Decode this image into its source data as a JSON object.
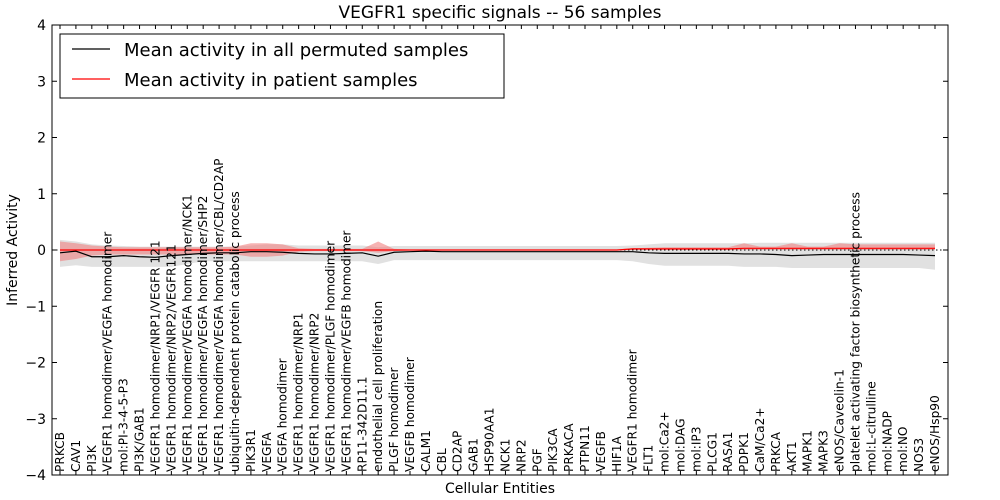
{
  "chart_data": {
    "type": "line",
    "title": "VEGFR1 specific signals -- 56 samples",
    "xlabel": "Cellular Entities",
    "ylabel": "Inferred Activity",
    "ylim": [
      -4,
      4
    ],
    "yticks": [
      -4,
      -3,
      -2,
      -1,
      0,
      1,
      2,
      3,
      4
    ],
    "ytick_labels": [
      "−4",
      "−3",
      "−2",
      "−1",
      "0",
      "1",
      "2",
      "3",
      "4"
    ],
    "legend_position": "top-left",
    "categories": [
      "PRKCB",
      "CAV1",
      "PI3K",
      "VEGFR1 homodimer/VEGFA homodimer",
      "mol:PI-3-4-5-P3",
      "PI3K/GAB1",
      "VEGFR1 homodimer/NRP1/VEGFR 121",
      "VEGFR1 homodimer/NRP2/VEGFR121",
      "VEGFR1 homodimer/VEGFA homodimer/NCK1",
      "VEGFR1 homodimer/VEGFA homodimer/SHP2",
      "VEGFR1 homodimer/VEGFA homodimer/CBL/CD2AP",
      "ubiquitin-dependent protein catabolic process",
      "PIK3R1",
      "VEGFA",
      "VEGFA homodimer",
      "VEGFR1 homodimer/NRP1",
      "VEGFR1 homodimer/NRP2",
      "VEGFR1 homodimer/PLGF homodimer",
      "VEGFR1 homodimer/VEGFB homodimer",
      "RP11-342D11.1",
      "endothelial cell proliferation",
      "PLGF homodimer",
      "VEGFB homodimer",
      "CALM1",
      "CBL",
      "CD2AP",
      "GAB1",
      "HSP90AA1",
      "NCK1",
      "NRP2",
      "PGF",
      "PIK3CA",
      "PRKACA",
      "PTPN11",
      "VEGFB",
      "HIF1A",
      "VEGFR1 homodimer",
      "FLT1",
      "mol:Ca2+",
      "mol:DAG",
      "mol:IP3",
      "PLCG1",
      "RASA1",
      "PDPK1",
      "CaM/Ca2+",
      "PRKCA",
      "AKT1",
      "MAPK1",
      "MAPK3",
      "eNOS/Caveolin-1",
      "platelet activating factor biosynthetic process",
      "mol:L-citrulline",
      "mol:NADP",
      "mol:NO",
      "NOS3",
      "eNOS/Hsp90"
    ],
    "series": [
      {
        "name": "Mean activity in all permuted samples",
        "color": "#000000",
        "band_color": "#bdbdbd",
        "values": [
          -0.05,
          -0.02,
          -0.12,
          -0.12,
          -0.1,
          -0.12,
          -0.13,
          -0.1,
          -0.08,
          -0.06,
          -0.05,
          -0.05,
          -0.03,
          -0.03,
          -0.04,
          -0.06,
          -0.07,
          -0.07,
          -0.06,
          -0.05,
          -0.11,
          -0.04,
          -0.03,
          -0.02,
          -0.03,
          -0.03,
          -0.03,
          -0.03,
          -0.03,
          -0.03,
          -0.03,
          -0.03,
          -0.03,
          -0.03,
          -0.03,
          -0.03,
          -0.03,
          -0.05,
          -0.06,
          -0.06,
          -0.06,
          -0.06,
          -0.06,
          -0.07,
          -0.07,
          -0.08,
          -0.1,
          -0.09,
          -0.08,
          -0.08,
          -0.08,
          -0.08,
          -0.08,
          -0.08,
          -0.09,
          -0.1
        ],
        "lower": [
          -0.3,
          -0.27,
          -0.3,
          -0.3,
          -0.3,
          -0.3,
          -0.3,
          -0.3,
          -0.25,
          -0.2,
          -0.2,
          -0.2,
          -0.2,
          -0.2,
          -0.2,
          -0.2,
          -0.2,
          -0.2,
          -0.2,
          -0.2,
          -0.25,
          -0.18,
          -0.18,
          -0.18,
          -0.18,
          -0.18,
          -0.18,
          -0.18,
          -0.18,
          -0.18,
          -0.18,
          -0.18,
          -0.18,
          -0.18,
          -0.18,
          -0.18,
          -0.2,
          -0.25,
          -0.28,
          -0.28,
          -0.28,
          -0.28,
          -0.28,
          -0.3,
          -0.3,
          -0.3,
          -0.32,
          -0.32,
          -0.32,
          -0.32,
          -0.32,
          -0.32,
          -0.32,
          -0.32,
          -0.32,
          -0.35
        ],
        "upper": [
          0.18,
          0.15,
          0.1,
          0.08,
          0.07,
          0.06,
          0.06,
          0.06,
          0.06,
          0.06,
          0.06,
          0.06,
          0.08,
          0.1,
          0.1,
          0.08,
          0.08,
          0.08,
          0.08,
          0.08,
          0.05,
          0.07,
          0.07,
          0.07,
          0.07,
          0.07,
          0.07,
          0.07,
          0.07,
          0.07,
          0.07,
          0.07,
          0.07,
          0.07,
          0.07,
          0.07,
          0.08,
          0.1,
          0.12,
          0.12,
          0.12,
          0.12,
          0.12,
          0.12,
          0.13,
          0.13,
          0.13,
          0.13,
          0.13,
          0.13,
          0.13,
          0.13,
          0.13,
          0.13,
          0.13,
          0.13
        ]
      },
      {
        "name": "Mean activity in patient samples",
        "color": "#ff0000",
        "band_color": "#f08080",
        "values": [
          0.0,
          0.0,
          0.0,
          0.0,
          0.0,
          0.0,
          0.0,
          0.0,
          0.0,
          0.0,
          0.0,
          0.0,
          0.0,
          0.0,
          0.0,
          0.0,
          0.0,
          0.0,
          0.0,
          0.0,
          0.0,
          0.0,
          0.0,
          0.0,
          0.0,
          0.0,
          0.0,
          0.0,
          0.0,
          0.0,
          0.0,
          0.0,
          0.0,
          0.0,
          0.0,
          0.0,
          0.02,
          0.02,
          0.02,
          0.02,
          0.02,
          0.02,
          0.02,
          0.03,
          0.03,
          0.03,
          0.03,
          0.03,
          0.03,
          0.03,
          0.03,
          0.03,
          0.03,
          0.03,
          0.03,
          0.03
        ],
        "lower": [
          -0.2,
          -0.16,
          -0.1,
          -0.08,
          -0.08,
          -0.08,
          -0.08,
          -0.08,
          -0.08,
          -0.08,
          -0.08,
          -0.08,
          -0.12,
          -0.12,
          -0.1,
          -0.03,
          -0.02,
          -0.02,
          -0.02,
          -0.02,
          -0.05,
          -0.02,
          -0.01,
          -0.01,
          -0.01,
          -0.01,
          -0.01,
          -0.01,
          -0.01,
          -0.01,
          -0.01,
          -0.01,
          -0.01,
          -0.01,
          -0.01,
          -0.01,
          0.0,
          0.0,
          0.0,
          0.0,
          0.0,
          0.0,
          0.0,
          0.0,
          0.0,
          0.0,
          0.0,
          0.0,
          0.0,
          0.0,
          0.0,
          0.0,
          0.0,
          0.0,
          0.0,
          0.0
        ],
        "upper": [
          0.15,
          0.12,
          0.08,
          0.06,
          0.05,
          0.05,
          0.05,
          0.05,
          0.05,
          0.05,
          0.05,
          0.06,
          0.12,
          0.12,
          0.1,
          0.03,
          0.02,
          0.02,
          0.02,
          0.02,
          0.15,
          0.02,
          0.01,
          0.01,
          0.01,
          0.01,
          0.01,
          0.01,
          0.01,
          0.01,
          0.01,
          0.01,
          0.01,
          0.01,
          0.01,
          0.01,
          0.03,
          0.04,
          0.05,
          0.05,
          0.05,
          0.05,
          0.05,
          0.12,
          0.06,
          0.06,
          0.12,
          0.06,
          0.06,
          0.12,
          0.1,
          0.1,
          0.1,
          0.1,
          0.1,
          0.1
        ]
      }
    ],
    "reference_line": {
      "y": 0,
      "style": "dotted",
      "color": "#000000"
    }
  }
}
